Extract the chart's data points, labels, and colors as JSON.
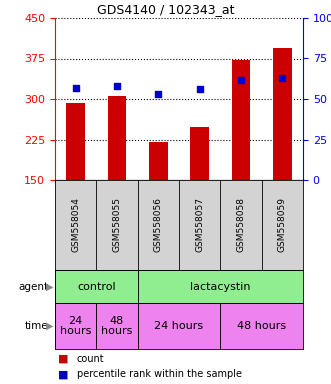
{
  "title": "GDS4140 / 102343_at",
  "samples": [
    "GSM558054",
    "GSM558055",
    "GSM558056",
    "GSM558057",
    "GSM558058",
    "GSM558059"
  ],
  "counts": [
    293,
    305,
    220,
    248,
    373,
    395
  ],
  "percentile_ranks": [
    57,
    58,
    53,
    56,
    62,
    63
  ],
  "left_ylim": [
    150,
    450
  ],
  "right_ylim": [
    0,
    100
  ],
  "left_yticks": [
    150,
    225,
    300,
    375,
    450
  ],
  "right_yticks": [
    0,
    25,
    50,
    75,
    100
  ],
  "right_yticklabels": [
    "0",
    "25",
    "50",
    "75",
    "100%"
  ],
  "bar_color": "#cc0000",
  "square_color": "#0000cc",
  "bar_width": 0.45,
  "agent_data": [
    {
      "text": "control",
      "start": 0,
      "end": 2,
      "color": "#90ee90"
    },
    {
      "text": "lactacystin",
      "start": 2,
      "end": 6,
      "color": "#90ee90"
    }
  ],
  "time_data": [
    {
      "text": "24\nhours",
      "start": 0,
      "end": 1,
      "color": "#ee82ee"
    },
    {
      "text": "48\nhours",
      "start": 1,
      "end": 2,
      "color": "#ee82ee"
    },
    {
      "text": "24 hours",
      "start": 2,
      "end": 4,
      "color": "#ee82ee"
    },
    {
      "text": "48 hours",
      "start": 4,
      "end": 6,
      "color": "#ee82ee"
    }
  ],
  "legend_count_color": "#cc0000",
  "legend_percentile_color": "#0000cc",
  "sample_bg": "#d3d3d3"
}
